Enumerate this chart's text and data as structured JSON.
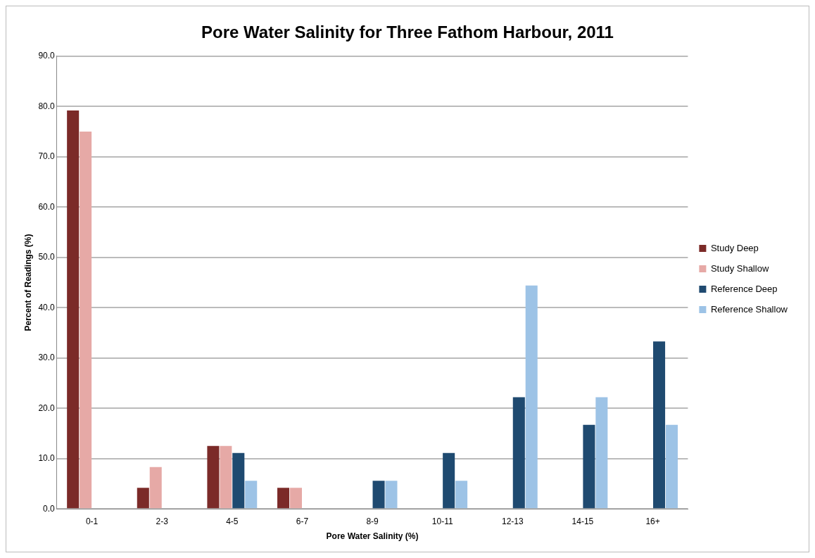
{
  "chart_data": {
    "type": "bar",
    "title": "Pore Water Salinity for Three Fathom Harbour, 2011",
    "xlabel": "Pore Water Salinity (%)",
    "ylabel": "Percent of Readings (%)",
    "categories": [
      "0-1",
      "2-3",
      "4-5",
      "6-7",
      "8-9",
      "10-11",
      "12-13",
      "14-15",
      "16+"
    ],
    "series": [
      {
        "name": "Study Deep",
        "color": "#7b2a28",
        "values": [
          79.2,
          4.2,
          12.5,
          4.2,
          0,
          0,
          0,
          0,
          0
        ]
      },
      {
        "name": "Study Shallow",
        "color": "#e6a9a6",
        "values": [
          75.0,
          8.3,
          12.5,
          4.2,
          0,
          0,
          0,
          0,
          0
        ]
      },
      {
        "name": "Reference Deep",
        "color": "#1f4a70",
        "values": [
          0,
          0,
          11.1,
          0,
          5.6,
          11.1,
          22.2,
          16.7,
          33.3
        ]
      },
      {
        "name": "Reference Shallow",
        "color": "#9dc3e6",
        "values": [
          0,
          0,
          5.6,
          0,
          5.6,
          5.6,
          44.4,
          22.2,
          16.7
        ]
      }
    ],
    "ylim": [
      0,
      90
    ],
    "yticks": [
      {
        "value": 0,
        "label": "0.0"
      },
      {
        "value": 10,
        "label": "10.0"
      },
      {
        "value": 20,
        "label": "20.0"
      },
      {
        "value": 30,
        "label": "30.0"
      },
      {
        "value": 40,
        "label": "40.0"
      },
      {
        "value": 50,
        "label": "50.0"
      },
      {
        "value": 60,
        "label": "60.0"
      },
      {
        "value": 70,
        "label": "70.0"
      },
      {
        "value": 80,
        "label": "80.0"
      },
      {
        "value": 90,
        "label": "90.0"
      }
    ],
    "grid": "y",
    "legend": "right"
  }
}
